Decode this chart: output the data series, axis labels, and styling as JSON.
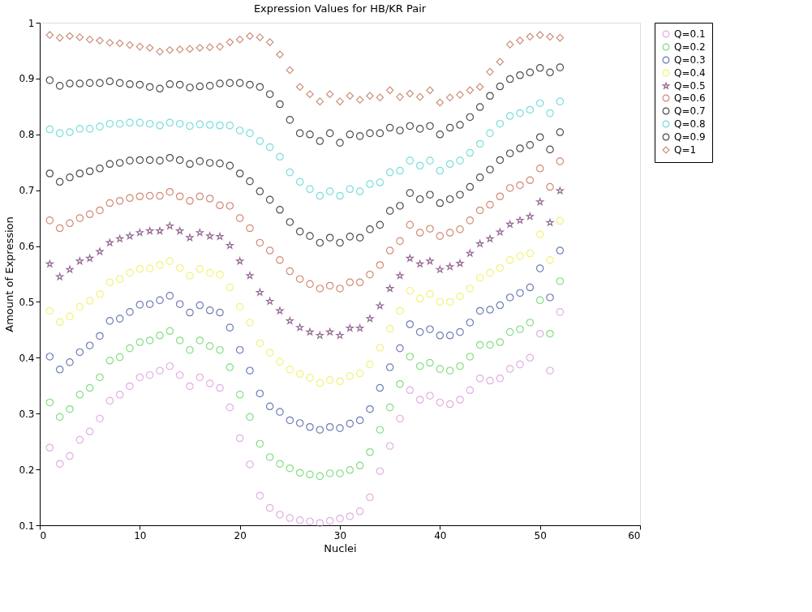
{
  "chart_data": {
    "type": "scatter",
    "title": "Expression Values for HB/KR Pair",
    "xlabel": "Nuclei",
    "ylabel": "Amount of Expression",
    "x": [
      1,
      2,
      3,
      4,
      5,
      6,
      7,
      8,
      9,
      10,
      11,
      12,
      13,
      14,
      15,
      16,
      17,
      18,
      19,
      20,
      21,
      22,
      23,
      24,
      25,
      26,
      27,
      28,
      29,
      30,
      31,
      32,
      33,
      34,
      35,
      36,
      37,
      38,
      39,
      40,
      41,
      42,
      43,
      44,
      45,
      46,
      47,
      48,
      49,
      50,
      51,
      52
    ],
    "xlim": [
      0,
      60
    ],
    "xticks": [
      0,
      10,
      20,
      30,
      40,
      50,
      60
    ],
    "ylim": [
      0.1,
      1
    ],
    "yticks": [
      0.1,
      0.2,
      0.3,
      0.4,
      0.5,
      0.6,
      0.7,
      0.8,
      0.9,
      1
    ],
    "grid": false,
    "legend": "right",
    "series": [
      {
        "name": "Q=0.1",
        "color": "#d58cd5",
        "marker": "circle",
        "values": [
          0.239,
          0.21,
          0.224,
          0.253,
          0.268,
          0.291,
          0.323,
          0.334,
          0.349,
          0.365,
          0.369,
          0.377,
          0.385,
          0.369,
          0.349,
          0.365,
          0.354,
          0.346,
          0.311,
          0.256,
          0.209,
          0.153,
          0.131,
          0.119,
          0.113,
          0.109,
          0.107,
          0.104,
          0.108,
          0.112,
          0.116,
          0.125,
          0.15,
          0.197,
          0.242,
          0.291,
          0.342,
          0.325,
          0.332,
          0.32,
          0.317,
          0.325,
          0.342,
          0.363,
          0.359,
          0.363,
          0.38,
          0.388,
          0.4,
          0.443,
          0.377,
          0.482
        ]
      },
      {
        "name": "Q=0.2",
        "color": "#4fcf4f",
        "marker": "circle",
        "values": [
          0.32,
          0.294,
          0.308,
          0.334,
          0.346,
          0.365,
          0.395,
          0.401,
          0.417,
          0.428,
          0.431,
          0.44,
          0.448,
          0.431,
          0.414,
          0.431,
          0.421,
          0.414,
          0.383,
          0.334,
          0.294,
          0.246,
          0.222,
          0.21,
          0.202,
          0.194,
          0.191,
          0.188,
          0.193,
          0.193,
          0.199,
          0.207,
          0.231,
          0.271,
          0.311,
          0.353,
          0.402,
          0.385,
          0.391,
          0.38,
          0.377,
          0.385,
          0.402,
          0.423,
          0.423,
          0.428,
          0.446,
          0.451,
          0.463,
          0.503,
          0.443,
          0.537
        ]
      },
      {
        "name": "Q=0.3",
        "color": "#2f4592",
        "marker": "circle",
        "values": [
          0.402,
          0.379,
          0.392,
          0.41,
          0.422,
          0.439,
          0.466,
          0.47,
          0.482,
          0.495,
          0.496,
          0.503,
          0.511,
          0.496,
          0.481,
          0.494,
          0.485,
          0.481,
          0.454,
          0.414,
          0.377,
          0.336,
          0.313,
          0.303,
          0.288,
          0.283,
          0.276,
          0.271,
          0.276,
          0.274,
          0.282,
          0.288,
          0.308,
          0.346,
          0.383,
          0.417,
          0.46,
          0.446,
          0.451,
          0.44,
          0.44,
          0.446,
          0.463,
          0.484,
          0.486,
          0.494,
          0.508,
          0.516,
          0.526,
          0.56,
          0.508,
          0.592
        ]
      },
      {
        "name": "Q=0.4",
        "color": "#eded40",
        "marker": "circle",
        "values": [
          0.484,
          0.464,
          0.474,
          0.491,
          0.502,
          0.514,
          0.535,
          0.541,
          0.552,
          0.559,
          0.56,
          0.566,
          0.573,
          0.561,
          0.547,
          0.559,
          0.552,
          0.549,
          0.526,
          0.491,
          0.463,
          0.426,
          0.409,
          0.393,
          0.379,
          0.371,
          0.364,
          0.355,
          0.36,
          0.358,
          0.367,
          0.372,
          0.388,
          0.418,
          0.452,
          0.484,
          0.52,
          0.506,
          0.514,
          0.5,
          0.5,
          0.51,
          0.524,
          0.543,
          0.552,
          0.561,
          0.575,
          0.582,
          0.587,
          0.621,
          0.575,
          0.645
        ]
      },
      {
        "name": "Q=0.5",
        "color": "#6a2d6a",
        "marker": "star",
        "values": [
          0.568,
          0.545,
          0.558,
          0.573,
          0.578,
          0.59,
          0.606,
          0.613,
          0.618,
          0.624,
          0.627,
          0.627,
          0.636,
          0.627,
          0.615,
          0.624,
          0.618,
          0.617,
          0.601,
          0.573,
          0.547,
          0.517,
          0.501,
          0.484,
          0.466,
          0.454,
          0.446,
          0.44,
          0.446,
          0.44,
          0.453,
          0.453,
          0.47,
          0.493,
          0.524,
          0.547,
          0.578,
          0.568,
          0.573,
          0.558,
          0.563,
          0.569,
          0.587,
          0.604,
          0.613,
          0.625,
          0.639,
          0.646,
          0.653,
          0.679,
          0.642,
          0.699
        ]
      },
      {
        "name": "Q=0.6",
        "color": "#c0573a",
        "marker": "circle",
        "values": [
          0.646,
          0.632,
          0.641,
          0.65,
          0.657,
          0.664,
          0.677,
          0.681,
          0.686,
          0.689,
          0.69,
          0.69,
          0.697,
          0.689,
          0.681,
          0.689,
          0.685,
          0.673,
          0.672,
          0.65,
          0.632,
          0.606,
          0.592,
          0.575,
          0.555,
          0.541,
          0.532,
          0.524,
          0.529,
          0.524,
          0.535,
          0.535,
          0.549,
          0.566,
          0.592,
          0.609,
          0.638,
          0.624,
          0.631,
          0.618,
          0.624,
          0.63,
          0.646,
          0.664,
          0.674,
          0.689,
          0.704,
          0.709,
          0.718,
          0.739,
          0.706,
          0.752
        ]
      },
      {
        "name": "Q=0.7",
        "color": "#000000",
        "marker": "circle",
        "values": [
          0.73,
          0.715,
          0.723,
          0.73,
          0.734,
          0.739,
          0.747,
          0.749,
          0.753,
          0.754,
          0.754,
          0.753,
          0.758,
          0.754,
          0.747,
          0.752,
          0.749,
          0.748,
          0.744,
          0.73,
          0.716,
          0.698,
          0.683,
          0.665,
          0.643,
          0.626,
          0.618,
          0.606,
          0.615,
          0.606,
          0.617,
          0.615,
          0.63,
          0.638,
          0.663,
          0.672,
          0.695,
          0.684,
          0.692,
          0.677,
          0.684,
          0.692,
          0.706,
          0.723,
          0.737,
          0.754,
          0.766,
          0.775,
          0.781,
          0.795,
          0.773,
          0.804
        ]
      },
      {
        "name": "Q=0.8",
        "color": "#3fcfcf",
        "marker": "circle",
        "values": [
          0.809,
          0.802,
          0.804,
          0.81,
          0.81,
          0.814,
          0.819,
          0.819,
          0.821,
          0.821,
          0.819,
          0.816,
          0.821,
          0.819,
          0.815,
          0.818,
          0.817,
          0.816,
          0.816,
          0.807,
          0.802,
          0.788,
          0.777,
          0.76,
          0.732,
          0.715,
          0.702,
          0.69,
          0.698,
          0.69,
          0.702,
          0.698,
          0.711,
          0.714,
          0.732,
          0.735,
          0.753,
          0.744,
          0.753,
          0.735,
          0.747,
          0.753,
          0.767,
          0.783,
          0.802,
          0.819,
          0.833,
          0.838,
          0.844,
          0.856,
          0.838,
          0.859
        ]
      },
      {
        "name": "Q=0.9",
        "color": "#000000",
        "marker": "circle",
        "values": [
          0.897,
          0.887,
          0.891,
          0.891,
          0.892,
          0.892,
          0.895,
          0.892,
          0.89,
          0.889,
          0.885,
          0.882,
          0.89,
          0.889,
          0.884,
          0.886,
          0.887,
          0.891,
          0.892,
          0.892,
          0.889,
          0.885,
          0.872,
          0.854,
          0.826,
          0.802,
          0.8,
          0.788,
          0.802,
          0.785,
          0.8,
          0.797,
          0.802,
          0.802,
          0.812,
          0.807,
          0.815,
          0.81,
          0.815,
          0.8,
          0.812,
          0.817,
          0.831,
          0.849,
          0.869,
          0.886,
          0.899,
          0.906,
          0.911,
          0.919,
          0.911,
          0.92
        ]
      },
      {
        "name": "Q=1",
        "color": "#b5603f",
        "marker": "diamond",
        "values": [
          0.978,
          0.973,
          0.976,
          0.974,
          0.97,
          0.968,
          0.964,
          0.963,
          0.96,
          0.957,
          0.955,
          0.948,
          0.951,
          0.952,
          0.953,
          0.955,
          0.956,
          0.957,
          0.965,
          0.97,
          0.976,
          0.974,
          0.965,
          0.943,
          0.915,
          0.885,
          0.872,
          0.859,
          0.872,
          0.859,
          0.869,
          0.862,
          0.869,
          0.866,
          0.879,
          0.867,
          0.873,
          0.867,
          0.879,
          0.857,
          0.866,
          0.871,
          0.879,
          0.885,
          0.912,
          0.93,
          0.961,
          0.968,
          0.975,
          0.978,
          0.975,
          0.973
        ]
      }
    ]
  }
}
